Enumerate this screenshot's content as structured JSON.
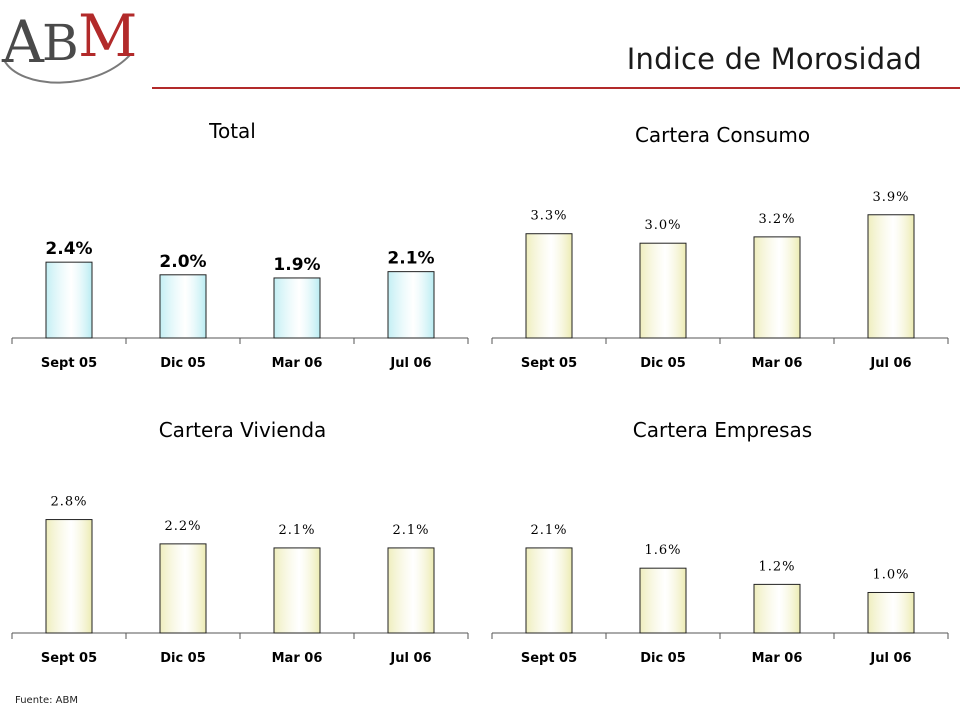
{
  "header": {
    "logo_text": "ABM",
    "title": "Indice de Morosidad"
  },
  "footer": {
    "source": "Fuente: ABM"
  },
  "colors": {
    "accent_rule": "#b22a2a",
    "bar_blue": "#b9ecf2",
    "bar_olive": "#ecebb2"
  },
  "chart_data": [
    {
      "type": "bar",
      "title": "Total",
      "categories": [
        "Sept 05",
        "Dic 05",
        "Mar 06",
        "Jul 06"
      ],
      "values": [
        2.4,
        2.0,
        1.9,
        2.1
      ],
      "value_labels": [
        "2.4%",
        "2.0%",
        "1.9%",
        "2.1%"
      ],
      "ylim": [
        0,
        5
      ],
      "bar_color": "#b9ecf2",
      "label_style": "bold",
      "grid": false
    },
    {
      "type": "bar",
      "title": "Cartera Consumo",
      "categories": [
        "Sept 05",
        "Dic 05",
        "Mar 06",
        "Jul 06"
      ],
      "values": [
        3.3,
        3.0,
        3.2,
        3.9
      ],
      "value_labels": [
        "3.3%",
        "3.0%",
        "3.2%",
        "3.9%"
      ],
      "ylim": [
        0,
        5
      ],
      "bar_color": "#ecebb2",
      "label_style": "plain",
      "grid": false
    },
    {
      "type": "bar",
      "title": "Cartera Vivienda",
      "categories": [
        "Sept 05",
        "Dic 05",
        "Mar 06",
        "Jul 06"
      ],
      "values": [
        2.8,
        2.2,
        2.1,
        2.1
      ],
      "value_labels": [
        "2.8%",
        "2.2%",
        "2.1%",
        "2.1%"
      ],
      "ylim": [
        0,
        3.9
      ],
      "bar_color": "#ecebb2",
      "label_style": "plain",
      "grid": false
    },
    {
      "type": "bar",
      "title": "Cartera Empresas",
      "categories": [
        "Sept 05",
        "Dic 05",
        "Mar 06",
        "Jul 06"
      ],
      "values": [
        2.1,
        1.6,
        1.2,
        1.0
      ],
      "value_labels": [
        "2.1%",
        "1.6%",
        "1.2%",
        "1.0%"
      ],
      "ylim": [
        0,
        3.9
      ],
      "bar_color": "#ecebb2",
      "label_style": "plain",
      "grid": false
    }
  ]
}
